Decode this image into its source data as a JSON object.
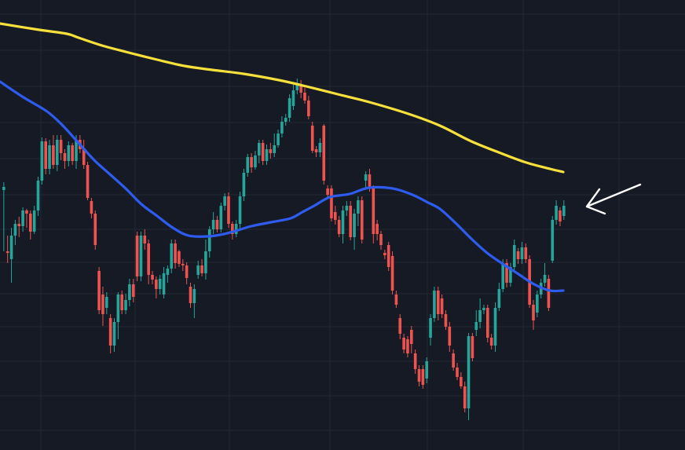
{
  "chart_data": {
    "type": "candlestick",
    "title": "",
    "xlabel": "",
    "ylabel": "",
    "grid": true,
    "ylim": [
      0,
      573
    ],
    "colors": {
      "background": "#161a25",
      "grid": "#232836",
      "up": "#26a69a",
      "down": "#ef5350",
      "ma_long": "#f7e03c",
      "ma_short": "#2f5cf0",
      "annotation": "#ffffff"
    },
    "annotation": {
      "type": "arrow-left",
      "target_index": 120
    },
    "candles": [
      [
        1,
        242,
        238,
        320,
        232
      ],
      [
        2,
        320,
        322,
        335,
        300
      ],
      [
        3,
        330,
        300,
        360,
        290
      ],
      [
        4,
        300,
        285,
        312,
        280
      ],
      [
        5,
        285,
        288,
        302,
        276
      ],
      [
        6,
        288,
        268,
        295,
        264
      ],
      [
        7,
        268,
        272,
        290,
        266
      ],
      [
        8,
        272,
        295,
        305,
        268
      ],
      [
        9,
        295,
        268,
        298,
        262
      ],
      [
        10,
        268,
        230,
        275,
        225
      ],
      [
        11,
        230,
        180,
        235,
        175
      ],
      [
        12,
        180,
        215,
        222,
        176
      ],
      [
        13,
        215,
        185,
        222,
        178
      ],
      [
        14,
        185,
        210,
        215,
        172
      ],
      [
        15,
        210,
        178,
        218,
        172
      ],
      [
        16,
        178,
        195,
        204,
        172
      ],
      [
        17,
        195,
        205,
        215,
        190
      ],
      [
        18,
        205,
        185,
        212,
        180
      ],
      [
        19,
        185,
        205,
        210,
        182
      ],
      [
        20,
        205,
        178,
        215,
        172
      ],
      [
        21,
        178,
        190,
        195,
        172
      ],
      [
        22,
        190,
        210,
        215,
        178
      ],
      [
        23,
        210,
        252,
        255,
        206
      ],
      [
        24,
        256,
        272,
        278,
        252
      ],
      [
        25,
        272,
        312,
        318,
        268
      ],
      [
        26,
        345,
        395,
        400,
        340
      ],
      [
        27,
        375,
        400,
        415,
        365
      ],
      [
        28,
        392,
        378,
        400,
        372
      ],
      [
        29,
        405,
        440,
        450,
        400
      ],
      [
        30,
        440,
        410,
        448,
        405
      ],
      [
        31,
        410,
        375,
        432,
        372
      ],
      [
        32,
        375,
        395,
        400,
        370
      ],
      [
        33,
        395,
        382,
        400,
        374
      ],
      [
        34,
        382,
        362,
        390,
        355
      ],
      [
        35,
        362,
        378,
        385,
        355
      ],
      [
        36,
        300,
        352,
        358,
        295
      ],
      [
        37,
        352,
        300,
        358,
        295
      ],
      [
        38,
        300,
        310,
        318,
        292
      ],
      [
        39,
        310,
        350,
        362,
        305
      ],
      [
        40,
        350,
        356,
        362,
        345
      ],
      [
        41,
        356,
        368,
        380,
        352
      ],
      [
        42,
        368,
        355,
        375,
        350
      ],
      [
        43,
        375,
        348,
        380,
        340
      ],
      [
        44,
        350,
        342,
        360,
        338
      ],
      [
        45,
        342,
        310,
        348,
        305
      ],
      [
        46,
        310,
        335,
        342,
        305
      ],
      [
        47,
        320,
        336,
        340,
        318
      ],
      [
        48,
        336,
        338,
        345,
        330
      ],
      [
        49,
        338,
        354,
        362,
        334
      ],
      [
        50,
        365,
        386,
        392,
        360
      ],
      [
        51,
        386,
        368,
        405,
        362
      ],
      [
        52,
        350,
        338,
        355,
        332
      ],
      [
        53,
        338,
        348,
        352,
        330
      ],
      [
        54,
        348,
        320,
        356,
        305
      ],
      [
        55,
        320,
        292,
        328,
        288
      ],
      [
        56,
        292,
        280,
        298,
        270
      ],
      [
        57,
        280,
        292,
        296,
        275
      ],
      [
        58,
        292,
        262,
        296,
        258
      ],
      [
        59,
        262,
        250,
        268,
        246
      ],
      [
        60,
        250,
        285,
        290,
        245
      ],
      [
        61,
        285,
        298,
        305,
        282
      ],
      [
        62,
        298,
        285,
        302,
        280
      ],
      [
        63,
        285,
        250,
        292,
        244
      ],
      [
        64,
        250,
        220,
        256,
        215
      ],
      [
        65,
        220,
        200,
        225,
        196
      ],
      [
        66,
        200,
        213,
        220,
        195
      ],
      [
        67,
        213,
        198,
        216,
        192
      ],
      [
        68,
        198,
        182,
        208,
        178
      ],
      [
        69,
        182,
        205,
        210,
        178
      ],
      [
        70,
        205,
        190,
        210,
        184
      ],
      [
        71,
        190,
        195,
        202,
        182
      ],
      [
        72,
        195,
        185,
        200,
        170
      ],
      [
        73,
        185,
        170,
        188,
        165
      ],
      [
        74,
        170,
        155,
        175,
        148
      ],
      [
        75,
        155,
        150,
        160,
        145
      ],
      [
        76,
        150,
        125,
        155,
        120
      ],
      [
        77,
        135,
        115,
        140,
        108
      ],
      [
        78,
        115,
        108,
        120,
        100
      ],
      [
        79,
        108,
        118,
        125,
        102
      ],
      [
        80,
        118,
        128,
        132,
        112
      ],
      [
        81,
        128,
        148,
        152,
        122
      ],
      [
        82,
        160,
        192,
        195,
        155
      ],
      [
        83,
        190,
        194,
        200,
        186
      ],
      [
        84,
        194,
        182,
        200,
        176
      ],
      [
        85,
        160,
        230,
        235,
        158
      ],
      [
        86,
        240,
        248,
        252,
        236
      ],
      [
        87,
        240,
        278,
        282,
        236
      ],
      [
        88,
        270,
        280,
        286,
        262
      ],
      [
        89,
        280,
        298,
        302,
        275
      ],
      [
        90,
        298,
        268,
        310,
        262
      ],
      [
        91,
        268,
        262,
        275,
        256
      ],
      [
        92,
        262,
        302,
        306,
        256
      ],
      [
        93,
        302,
        272,
        318,
        266
      ],
      [
        94,
        272,
        255,
        288,
        250
      ],
      [
        95,
        255,
        305,
        310,
        250
      ],
      [
        96,
        230,
        222,
        240,
        218
      ],
      [
        97,
        222,
        238,
        244,
        215
      ],
      [
        98,
        240,
        298,
        310,
        236
      ],
      [
        99,
        285,
        298,
        306,
        280
      ],
      [
        100,
        298,
        312,
        318,
        294
      ],
      [
        101,
        322,
        325,
        330,
        318
      ],
      [
        102,
        312,
        340,
        345,
        308
      ],
      [
        103,
        326,
        370,
        375,
        320
      ],
      [
        104,
        375,
        388,
        392,
        370
      ],
      [
        105,
        405,
        425,
        432,
        400
      ],
      [
        106,
        430,
        445,
        450,
        425
      ],
      [
        107,
        432,
        450,
        455,
        428
      ],
      [
        108,
        420,
        438,
        450,
        415
      ],
      [
        109,
        450,
        470,
        476,
        445
      ],
      [
        110,
        470,
        486,
        492,
        465
      ],
      [
        111,
        470,
        490,
        495,
        465
      ],
      [
        112,
        482,
        460,
        488,
        455
      ],
      [
        113,
        430,
        405,
        440,
        400
      ],
      [
        114,
        405,
        370,
        410,
        365
      ],
      [
        115,
        370,
        400,
        408,
        365
      ],
      [
        116,
        380,
        400,
        405,
        375
      ],
      [
        117,
        400,
        416,
        420,
        395
      ],
      [
        118,
        416,
        440,
        448,
        410
      ],
      [
        119,
        450,
        468,
        472,
        445
      ],
      [
        120,
        468,
        480,
        484,
        462
      ],
      [
        121,
        480,
        492,
        495,
        474
      ],
      [
        122,
        492,
        520,
        525,
        486
      ],
      [
        123,
        520,
        428,
        535,
        424
      ],
      [
        124,
        428,
        456,
        460,
        424
      ],
      [
        125,
        420,
        410,
        428,
        395
      ],
      [
        126,
        410,
        395,
        418,
        380
      ],
      [
        127,
        395,
        392,
        400,
        388
      ],
      [
        128,
        392,
        430,
        436,
        388
      ],
      [
        129,
        430,
        440,
        445,
        425
      ],
      [
        130,
        440,
        392,
        448,
        385
      ],
      [
        131,
        392,
        368,
        396,
        360
      ],
      [
        132,
        368,
        335,
        372,
        330
      ],
      [
        133,
        335,
        360,
        366,
        330
      ],
      [
        134,
        360,
        340,
        365,
        335
      ],
      [
        135,
        340,
        312,
        345,
        305
      ],
      [
        136,
        320,
        330,
        336,
        316
      ],
      [
        137,
        330,
        315,
        336,
        308
      ],
      [
        138,
        315,
        330,
        335,
        310
      ],
      [
        139,
        330,
        388,
        392,
        325
      ],
      [
        140,
        388,
        408,
        420,
        382
      ],
      [
        141,
        398,
        375,
        404,
        370
      ],
      [
        142,
        375,
        360,
        380,
        355
      ],
      [
        143,
        360,
        350,
        365,
        335
      ],
      [
        144,
        355,
        392,
        396,
        350
      ],
      [
        145,
        332,
        280,
        335,
        275
      ],
      [
        146,
        280,
        262,
        286,
        255
      ],
      [
        147,
        268,
        282,
        288,
        264
      ],
      [
        148,
        275,
        262,
        280,
        255
      ]
    ],
    "ma_long": [
      [
        0,
        30
      ],
      [
        50,
        38
      ],
      [
        85,
        43
      ],
      [
        100,
        48
      ],
      [
        130,
        58
      ],
      [
        160,
        66
      ],
      [
        200,
        76
      ],
      [
        235,
        84
      ],
      [
        270,
        89
      ],
      [
        310,
        94
      ],
      [
        355,
        102
      ],
      [
        390,
        110
      ],
      [
        430,
        120
      ],
      [
        470,
        130
      ],
      [
        520,
        145
      ],
      [
        560,
        160
      ],
      [
        600,
        180
      ],
      [
        640,
        196
      ],
      [
        670,
        207
      ],
      [
        700,
        215
      ],
      [
        717,
        219
      ]
    ],
    "ma_short": [
      [
        0,
        104
      ],
      [
        30,
        124
      ],
      [
        60,
        142
      ],
      [
        80,
        160
      ],
      [
        100,
        182
      ],
      [
        120,
        204
      ],
      [
        140,
        222
      ],
      [
        160,
        240
      ],
      [
        180,
        260
      ],
      [
        200,
        275
      ],
      [
        220,
        290
      ],
      [
        240,
        300
      ],
      [
        265,
        301
      ],
      [
        285,
        298
      ],
      [
        300,
        294
      ],
      [
        320,
        288
      ],
      [
        345,
        283
      ],
      [
        370,
        278
      ],
      [
        385,
        270
      ],
      [
        400,
        262
      ],
      [
        420,
        251
      ],
      [
        445,
        247
      ],
      [
        470,
        239
      ],
      [
        500,
        240
      ],
      [
        525,
        248
      ],
      [
        545,
        258
      ],
      [
        560,
        266
      ],
      [
        580,
        284
      ],
      [
        600,
        304
      ],
      [
        620,
        322
      ],
      [
        640,
        336
      ],
      [
        660,
        349
      ],
      [
        680,
        362
      ],
      [
        700,
        370
      ],
      [
        717,
        370
      ]
    ]
  }
}
